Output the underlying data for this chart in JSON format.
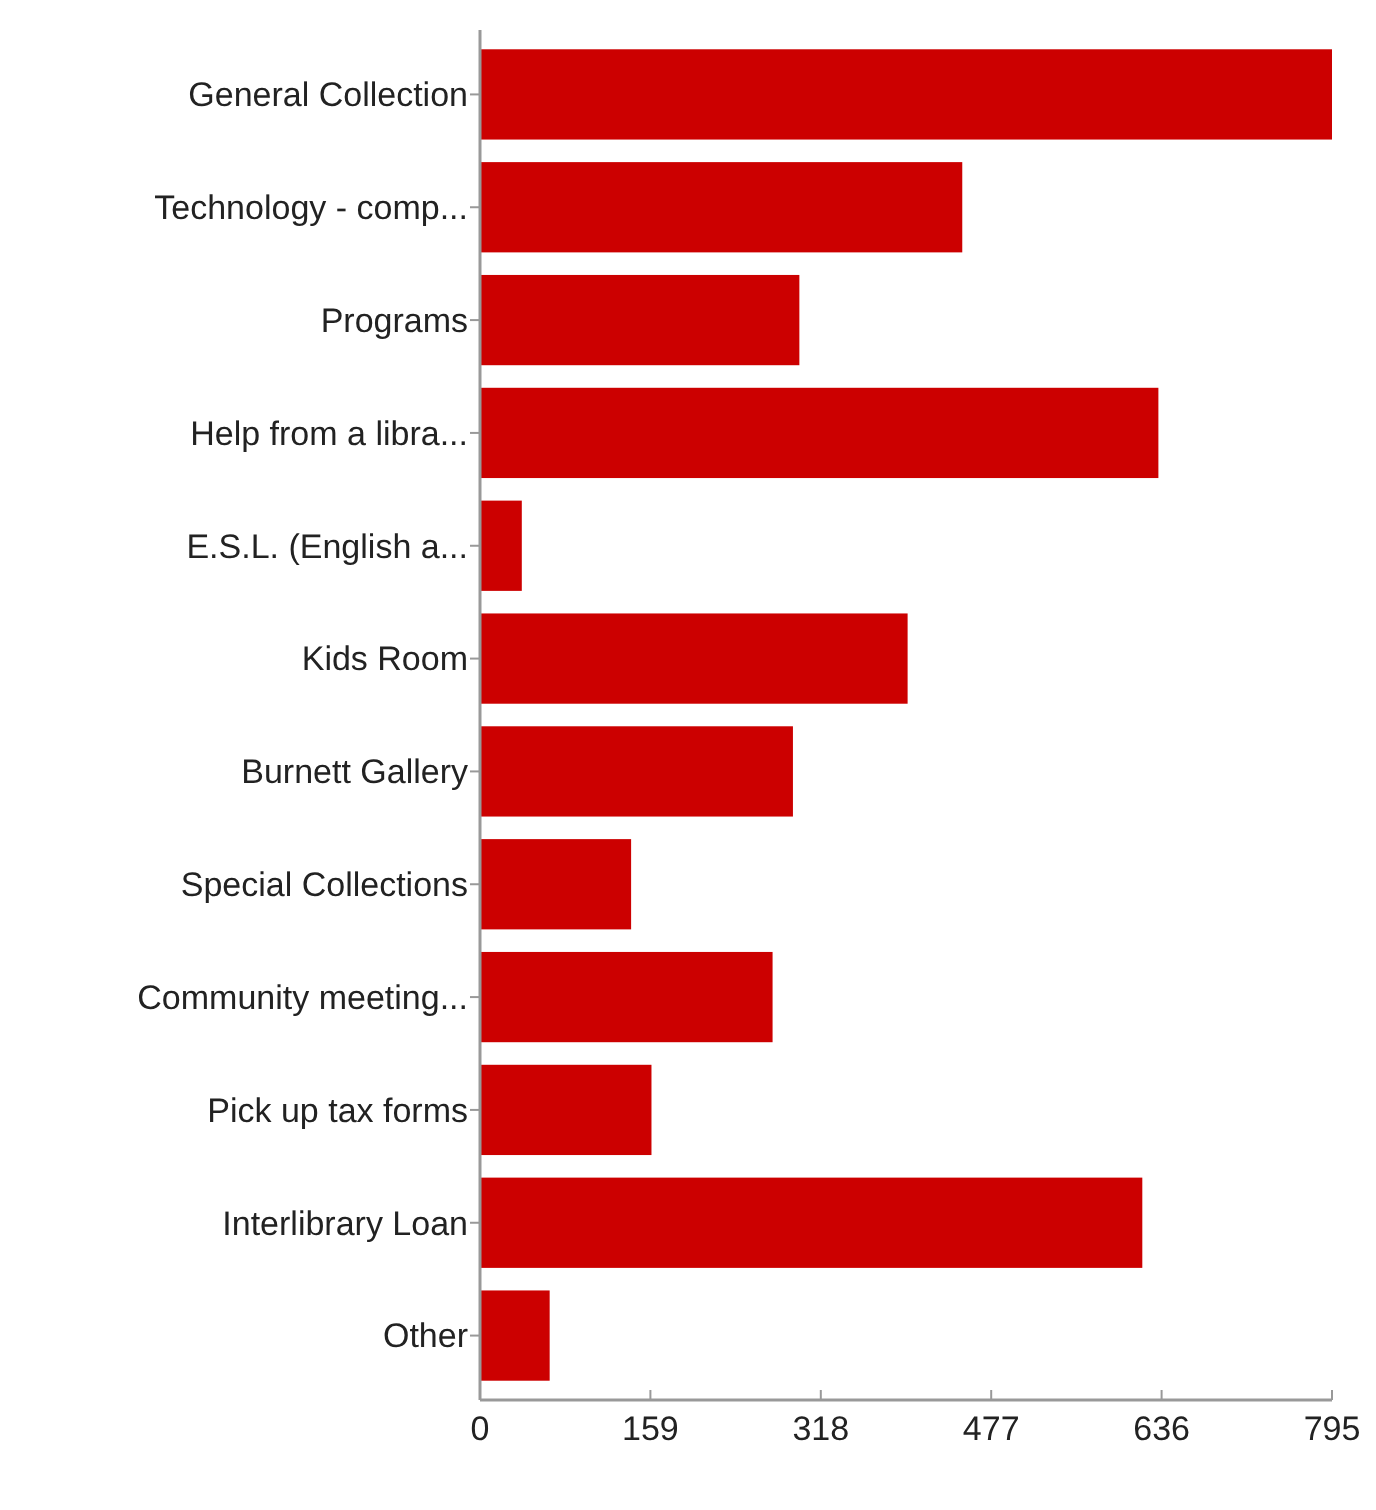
{
  "chart_data": {
    "type": "bar",
    "orientation": "horizontal",
    "categories": [
      "General Collection",
      "Technology - comp...",
      "Programs",
      "Help from a libra...",
      "E.S.L. (English a...",
      "Kids Room",
      "Burnett Gallery",
      "Special Collections",
      "Community meeting...",
      "Pick up tax forms",
      "Interlibrary Loan",
      "Other"
    ],
    "values": [
      795,
      450,
      298,
      633,
      39,
      399,
      292,
      141,
      273,
      160,
      618,
      65
    ],
    "color": "#cc0000",
    "xlim": [
      0,
      795
    ],
    "xticks": [
      0,
      159,
      318,
      477,
      636,
      795
    ]
  }
}
